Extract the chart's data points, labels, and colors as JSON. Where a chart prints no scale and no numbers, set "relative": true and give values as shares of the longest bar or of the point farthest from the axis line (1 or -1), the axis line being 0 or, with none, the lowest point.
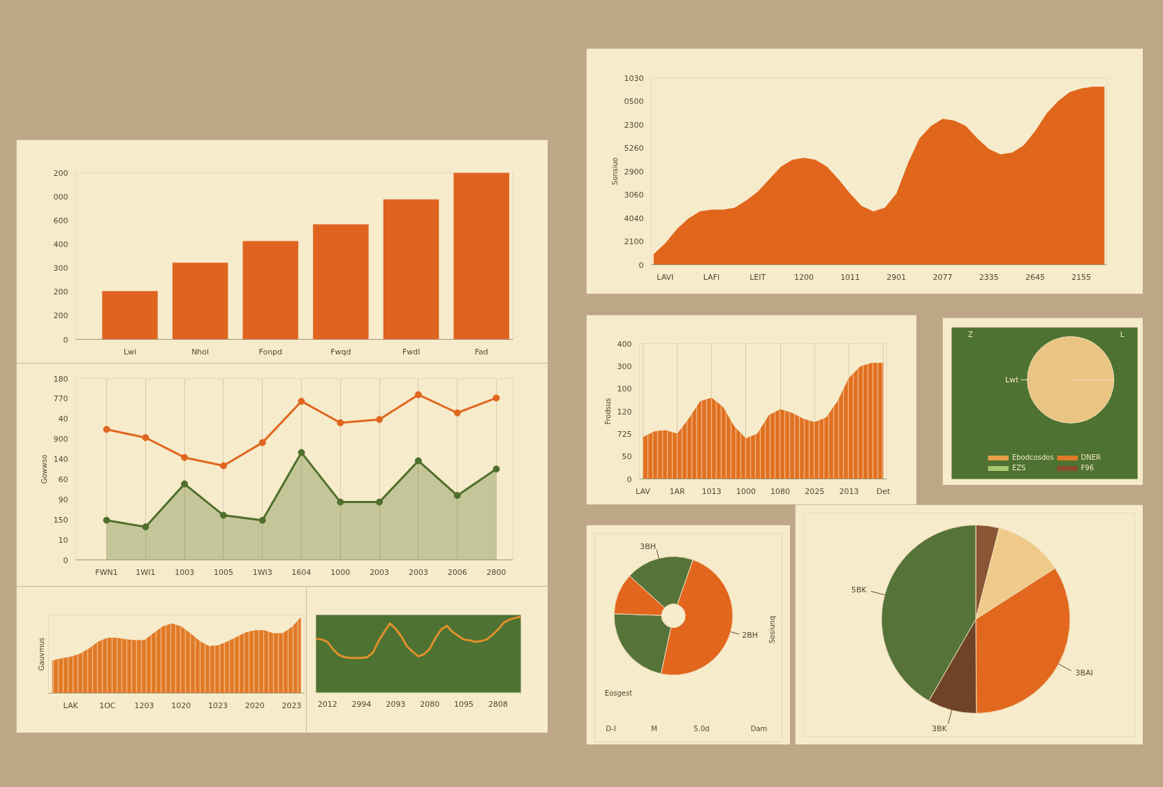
{
  "chart_data": [
    {
      "type": "bar",
      "relative": true,
      "categories": [
        "Lwi",
        "Nhol",
        "Fonpd",
        "Fwqd",
        "Fwdl",
        "Fad"
      ],
      "values": [
        0.29,
        0.46,
        0.59,
        0.69,
        0.84,
        1.0
      ],
      "color": "#df6420",
      "annotations": [
        "0",
        "200",
        "200",
        "300",
        "400",
        "600",
        "000",
        "200"
      ]
    },
    {
      "type": "line",
      "relative": true,
      "categories": [
        "FWN1",
        "1WI1",
        "1003",
        "1005",
        "1WI3",
        "1604",
        "1000",
        "2003",
        "2003",
        "2006",
        "2800"
      ],
      "series": [
        {
          "color": "#e0661f",
          "values": [
            0.79,
            0.74,
            0.62,
            0.57,
            0.71,
            0.96,
            0.83,
            0.85,
            1.0,
            0.89,
            0.98
          ]
        },
        {
          "type": "area",
          "color": "#4f6f2b",
          "values": [
            0.24,
            0.2,
            0.46,
            0.27,
            0.24,
            0.65,
            0.35,
            0.35,
            0.6,
            0.39,
            0.55
          ]
        }
      ],
      "ylabel": "Gowwso",
      "annotations": [
        "0",
        "10",
        "150",
        "90",
        "60",
        "140",
        "900",
        "40",
        "770",
        "180"
      ],
      "grid": "x",
      "marker": "circle"
    },
    {
      "type": "area",
      "relative": true,
      "color": "#e07a26",
      "ylabel": "Gauvmus",
      "categories": [
        null,
        null,
        "LAK",
        null,
        null,
        null,
        "1OC",
        null,
        null,
        null,
        "1203",
        null,
        null,
        null,
        "1020",
        null,
        null,
        null,
        "1023",
        null,
        null,
        null,
        "2020",
        null,
        null,
        null,
        "2023",
        null
      ],
      "values": [
        0.43,
        0.46,
        0.48,
        0.52,
        0.59,
        0.68,
        0.73,
        0.73,
        0.71,
        0.7,
        0.7,
        0.79,
        0.88,
        0.92,
        0.88,
        0.79,
        0.69,
        0.62,
        0.63,
        0.68,
        0.74,
        0.8,
        0.83,
        0.83,
        0.79,
        0.79,
        0.87,
        1.0
      ]
    },
    {
      "type": "line",
      "relative": true,
      "color": "#e0902e",
      "categories": [
        null,
        null,
        "2012",
        null,
        null,
        null,
        null,
        null,
        "2994",
        null,
        null,
        null,
        null,
        null,
        "2093",
        null,
        null,
        null,
        null,
        null,
        "2080",
        null,
        null,
        null,
        null,
        null,
        "1095",
        null,
        null,
        null,
        null,
        null,
        "2808",
        null,
        null,
        null,
        null
      ],
      "values": [
        0.71,
        0.7,
        0.67,
        0.57,
        0.5,
        0.47,
        0.46,
        0.46,
        0.46,
        0.47,
        0.53,
        0.68,
        0.8,
        0.91,
        0.84,
        0.74,
        0.61,
        0.54,
        0.48,
        0.51,
        0.58,
        0.72,
        0.83,
        0.88,
        0.8,
        0.75,
        0.7,
        0.69,
        0.67,
        0.68,
        0.7,
        0.76,
        0.83,
        0.92,
        0.96,
        0.98,
        1.0
      ]
    },
    {
      "type": "area",
      "relative": true,
      "color": "#e0661c",
      "ylabel": "Sonsiuo",
      "categories": [
        null,
        "LAVI",
        null,
        null,
        null,
        "LAFI",
        null,
        null,
        null,
        "LEIT",
        null,
        null,
        null,
        "1200",
        null,
        null,
        null,
        "1011",
        null,
        null,
        null,
        "2901",
        null,
        null,
        null,
        "2077",
        null,
        null,
        null,
        "2335",
        null,
        null,
        null,
        "2645",
        null,
        null,
        null,
        "2155",
        null,
        null
      ],
      "values": [
        0.06,
        0.12,
        0.2,
        0.26,
        0.3,
        0.31,
        0.31,
        0.32,
        0.36,
        0.41,
        0.48,
        0.55,
        0.59,
        0.6,
        0.59,
        0.55,
        0.48,
        0.4,
        0.33,
        0.3,
        0.32,
        0.4,
        0.57,
        0.71,
        0.78,
        0.82,
        0.81,
        0.78,
        0.71,
        0.65,
        0.62,
        0.63,
        0.67,
        0.75,
        0.85,
        0.92,
        0.97,
        0.99,
        1.0,
        1.0
      ],
      "annotations": [
        "0",
        "2100",
        "4040",
        "3060",
        "2900",
        "5260",
        "2300",
        "0500",
        "1030"
      ]
    },
    {
      "type": "area",
      "relative": true,
      "color": "#e07020",
      "ylabel": "Frodsus",
      "categories": [
        "LAV",
        null,
        null,
        "1AR",
        null,
        null,
        "1013",
        null,
        null,
        "1000",
        null,
        null,
        "1080",
        null,
        null,
        "2025",
        null,
        null,
        "2013",
        null,
        null,
        "Det"
      ],
      "values": [
        0.36,
        0.41,
        0.42,
        0.39,
        0.52,
        0.67,
        0.7,
        0.62,
        0.45,
        0.35,
        0.39,
        0.55,
        0.6,
        0.57,
        0.52,
        0.49,
        0.53,
        0.67,
        0.87,
        0.97,
        1.0,
        1.0
      ],
      "annotations": [
        "0",
        "50",
        "725",
        "120",
        "100",
        "300",
        "400"
      ],
      "grid": "x"
    },
    {
      "type": "pie",
      "categories": [
        "Lwt",
        "Ebodcosdos",
        "EZS",
        "DNER",
        "F96"
      ],
      "values": [
        100,
        null,
        null,
        null,
        null
      ],
      "colors": [
        "#e9c482",
        "#e9a04a",
        "#a8c870",
        "#e07a2a",
        "#8a4a2a"
      ],
      "legend": "bottom",
      "annotations": [
        "Z",
        "L"
      ]
    },
    {
      "type": "donut",
      "categories": [
        "3BH",
        "2BH",
        null,
        null
      ],
      "values": [
        18.6,
        48.0,
        22.2,
        11.2
      ],
      "colors": [
        "#56733a",
        "#e2661e",
        "#56733a",
        "#e2661e"
      ],
      "annotations": [
        "Sosiunq",
        "Eosgest",
        "D-I",
        "M",
        "5.0d",
        "Dam"
      ]
    },
    {
      "type": "pie",
      "categories": [
        null,
        null,
        "3BAI",
        "3BK",
        "5BK"
      ],
      "values": [
        4.0,
        11.9,
        34.0,
        8.4,
        41.7
      ],
      "colors": [
        "#8a5535",
        "#efca8a",
        "#e2681f",
        "#6f4328",
        "#56733a"
      ]
    }
  ]
}
